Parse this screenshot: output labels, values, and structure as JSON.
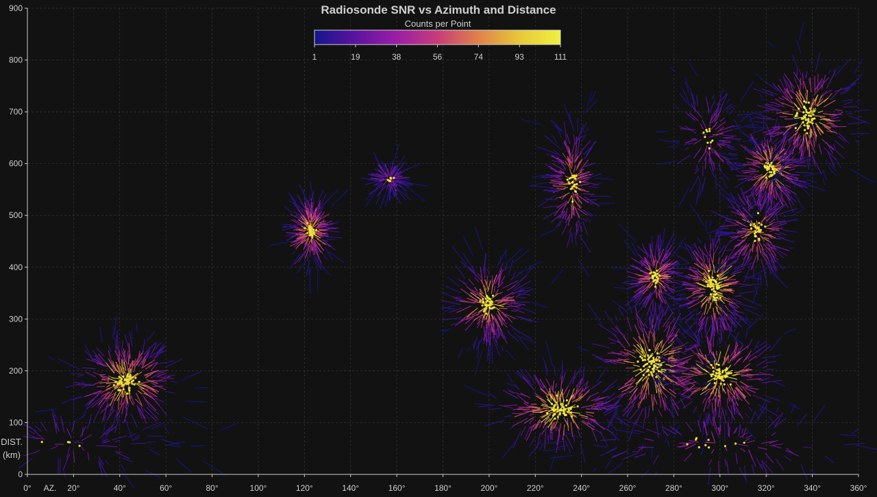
{
  "chart_data": {
    "type": "heatmap",
    "title": "Radiosonde SNR vs Azimuth and Distance",
    "x_axis": {
      "label": "AZ.",
      "range": [
        0,
        360
      ],
      "ticks": [
        0,
        20,
        40,
        60,
        80,
        100,
        120,
        140,
        160,
        180,
        200,
        220,
        240,
        260,
        280,
        300,
        320,
        340,
        360
      ],
      "tick_labels": [
        "0°",
        "20°",
        "40°",
        "60°",
        "80°",
        "100°",
        "120°",
        "140°",
        "160°",
        "180°",
        "200°",
        "220°",
        "240°",
        "260°",
        "280°",
        "300°",
        "320°",
        "340°",
        "360°"
      ]
    },
    "y_axis": {
      "label_line1": "DIST.",
      "label_line2": "(km)",
      "range": [
        0,
        900
      ],
      "ticks": [
        0,
        100,
        200,
        300,
        400,
        500,
        600,
        700,
        800,
        900
      ],
      "tick_labels": [
        "0",
        "100",
        "200",
        "300",
        "400",
        "500",
        "600",
        "700",
        "800",
        "900"
      ]
    },
    "grid": true,
    "colorbar": {
      "label": "Counts per Point",
      "placement": "top-center",
      "range": [
        1,
        111
      ],
      "tick_labels": [
        "1",
        "19",
        "38",
        "56",
        "74",
        "93",
        "111"
      ],
      "colors": [
        "#14168c",
        "#5a14a0",
        "#9a1ea6",
        "#c83c78",
        "#e0824a",
        "#e8c83a",
        "#f0f040"
      ]
    },
    "clusters": [
      {
        "az": 43,
        "dist": 180,
        "spread_az": 18,
        "spread_dist": 70,
        "density": 0.95
      },
      {
        "az": 20,
        "dist": 60,
        "spread_az": 40,
        "spread_dist": 60,
        "density": 0.25
      },
      {
        "az": 123,
        "dist": 470,
        "spread_az": 7,
        "spread_dist": 50,
        "density": 0.8
      },
      {
        "az": 157,
        "dist": 570,
        "spread_az": 5,
        "spread_dist": 20,
        "density": 0.35
      },
      {
        "az": 200,
        "dist": 330,
        "spread_az": 14,
        "spread_dist": 70,
        "density": 0.85
      },
      {
        "az": 236,
        "dist": 560,
        "spread_az": 8,
        "spread_dist": 110,
        "density": 0.7
      },
      {
        "az": 231,
        "dist": 125,
        "spread_az": 25,
        "spread_dist": 60,
        "density": 0.95
      },
      {
        "az": 270,
        "dist": 210,
        "spread_az": 20,
        "spread_dist": 110,
        "density": 1.0
      },
      {
        "az": 272,
        "dist": 380,
        "spread_az": 8,
        "spread_dist": 60,
        "density": 0.7
      },
      {
        "az": 297,
        "dist": 360,
        "spread_az": 12,
        "spread_dist": 90,
        "density": 0.95
      },
      {
        "az": 300,
        "dist": 190,
        "spread_az": 22,
        "spread_dist": 80,
        "density": 0.95
      },
      {
        "az": 316,
        "dist": 470,
        "spread_az": 12,
        "spread_dist": 80,
        "density": 0.7
      },
      {
        "az": 322,
        "dist": 590,
        "spread_az": 12,
        "spread_dist": 70,
        "density": 0.8
      },
      {
        "az": 338,
        "dist": 690,
        "spread_az": 18,
        "spread_dist": 90,
        "density": 0.9
      },
      {
        "az": 295,
        "dist": 650,
        "spread_az": 14,
        "spread_dist": 90,
        "density": 0.4
      },
      {
        "az": 300,
        "dist": 60,
        "spread_az": 60,
        "spread_dist": 60,
        "density": 0.4
      }
    ]
  }
}
